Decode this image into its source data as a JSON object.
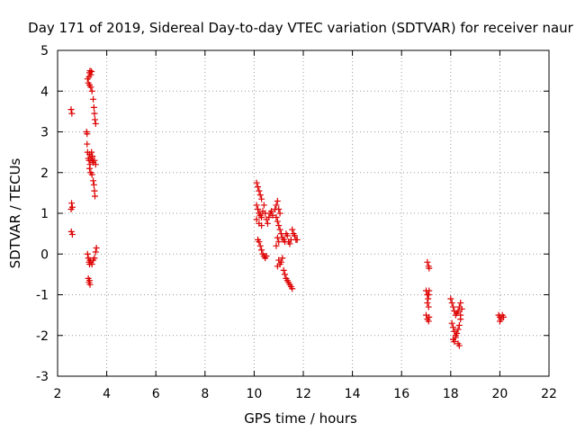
{
  "chart_data": {
    "type": "scatter",
    "title": "Day 171 of 2019, Sidereal Day-to-day VTEC variation (SDTVAR) for receiver naur",
    "xlabel": "GPS time / hours",
    "ylabel": "SDTVAR / TECUs",
    "xlim": [
      2,
      22
    ],
    "ylim": [
      -3,
      5
    ],
    "xticks": [
      "2",
      "4",
      "6",
      "8",
      "10",
      "12",
      "14",
      "16",
      "18",
      "20",
      "22"
    ],
    "yticks": [
      "-3",
      "-2",
      "-1",
      "0",
      "1",
      "2",
      "3",
      "4",
      "5"
    ],
    "grid": true,
    "marker": "plus",
    "colors": {
      "series": "#dd0000",
      "grid": "#999999",
      "axis": "#000000"
    },
    "series": [
      {
        "name": "SDTVAR",
        "points": [
          [
            2.55,
            3.55
          ],
          [
            2.58,
            3.45
          ],
          [
            2.57,
            1.25
          ],
          [
            2.55,
            1.1
          ],
          [
            2.6,
            1.15
          ],
          [
            2.56,
            0.55
          ],
          [
            2.6,
            0.48
          ],
          [
            3.18,
            3.0
          ],
          [
            3.2,
            2.95
          ],
          [
            3.22,
            4.3
          ],
          [
            3.25,
            4.2
          ],
          [
            3.28,
            4.35
          ],
          [
            3.3,
            4.45
          ],
          [
            3.32,
            4.5
          ],
          [
            3.35,
            4.4
          ],
          [
            3.38,
            4.48
          ],
          [
            3.3,
            4.15
          ],
          [
            3.35,
            4.1
          ],
          [
            3.4,
            4.0
          ],
          [
            3.45,
            3.8
          ],
          [
            3.48,
            3.6
          ],
          [
            3.5,
            3.45
          ],
          [
            3.52,
            3.3
          ],
          [
            3.55,
            3.2
          ],
          [
            3.2,
            2.7
          ],
          [
            3.22,
            2.5
          ],
          [
            3.25,
            2.35
          ],
          [
            3.28,
            2.3
          ],
          [
            3.3,
            2.45
          ],
          [
            3.32,
            2.2
          ],
          [
            3.35,
            2.35
          ],
          [
            3.38,
            2.5
          ],
          [
            3.4,
            2.3
          ],
          [
            3.42,
            2.4
          ],
          [
            3.45,
            2.25
          ],
          [
            3.5,
            2.3
          ],
          [
            3.55,
            2.2
          ],
          [
            3.3,
            2.1
          ],
          [
            3.35,
            2.0
          ],
          [
            3.4,
            1.95
          ],
          [
            3.45,
            1.8
          ],
          [
            3.48,
            1.7
          ],
          [
            3.5,
            1.55
          ],
          [
            3.52,
            1.42
          ],
          [
            3.22,
            0.0
          ],
          [
            3.25,
            -0.1
          ],
          [
            3.28,
            -0.2
          ],
          [
            3.3,
            -0.25
          ],
          [
            3.32,
            -0.15
          ],
          [
            3.35,
            -0.2
          ],
          [
            3.4,
            -0.25
          ],
          [
            3.45,
            -0.15
          ],
          [
            3.5,
            -0.1
          ],
          [
            3.55,
            0.05
          ],
          [
            3.58,
            0.15
          ],
          [
            3.25,
            -0.6
          ],
          [
            3.28,
            -0.7
          ],
          [
            3.3,
            -0.65
          ],
          [
            3.32,
            -0.75
          ],
          [
            10.1,
            1.75
          ],
          [
            10.15,
            1.65
          ],
          [
            10.2,
            1.55
          ],
          [
            10.25,
            1.45
          ],
          [
            10.3,
            1.35
          ],
          [
            10.1,
            1.2
          ],
          [
            10.15,
            1.1
          ],
          [
            10.2,
            1.0
          ],
          [
            10.25,
            0.95
          ],
          [
            10.3,
            0.9
          ],
          [
            10.35,
            1.05
          ],
          [
            10.4,
            1.2
          ],
          [
            10.45,
            1.0
          ],
          [
            10.5,
            0.85
          ],
          [
            10.55,
            0.75
          ],
          [
            10.6,
            0.9
          ],
          [
            10.65,
            1.0
          ],
          [
            10.7,
            1.05
          ],
          [
            10.75,
            0.95
          ],
          [
            10.1,
            0.85
          ],
          [
            10.2,
            0.75
          ],
          [
            10.3,
            0.7
          ],
          [
            10.15,
            0.35
          ],
          [
            10.2,
            0.3
          ],
          [
            10.25,
            0.2
          ],
          [
            10.3,
            0.1
          ],
          [
            10.35,
            0.0
          ],
          [
            10.4,
            -0.05
          ],
          [
            10.45,
            -0.1
          ],
          [
            10.5,
            -0.05
          ],
          [
            10.85,
            1.1
          ],
          [
            10.9,
            1.2
          ],
          [
            10.95,
            1.3
          ],
          [
            11.0,
            1.1
          ],
          [
            11.05,
            1.0
          ],
          [
            10.9,
            0.9
          ],
          [
            10.95,
            0.8
          ],
          [
            11.0,
            0.7
          ],
          [
            11.05,
            0.6
          ],
          [
            11.1,
            0.5
          ],
          [
            10.95,
            0.4
          ],
          [
            11.0,
            0.3
          ],
          [
            10.9,
            0.2
          ],
          [
            11.15,
            0.4
          ],
          [
            11.2,
            0.35
          ],
          [
            11.25,
            0.3
          ],
          [
            11.3,
            0.5
          ],
          [
            11.35,
            0.45
          ],
          [
            11.4,
            0.3
          ],
          [
            11.45,
            0.25
          ],
          [
            11.5,
            0.35
          ],
          [
            11.55,
            0.6
          ],
          [
            11.6,
            0.5
          ],
          [
            11.65,
            0.45
          ],
          [
            11.7,
            0.35
          ],
          [
            11.75,
            0.35
          ],
          [
            11.0,
            -0.15
          ],
          [
            11.05,
            -0.25
          ],
          [
            11.1,
            -0.2
          ],
          [
            11.15,
            -0.1
          ],
          [
            10.95,
            -0.3
          ],
          [
            11.2,
            -0.4
          ],
          [
            11.25,
            -0.5
          ],
          [
            11.3,
            -0.6
          ],
          [
            11.35,
            -0.65
          ],
          [
            11.4,
            -0.7
          ],
          [
            11.45,
            -0.75
          ],
          [
            11.5,
            -0.8
          ],
          [
            11.55,
            -0.85
          ],
          [
            17.05,
            -0.2
          ],
          [
            17.1,
            -0.3
          ],
          [
            17.12,
            -0.35
          ],
          [
            17.0,
            -0.9
          ],
          [
            17.05,
            -1.0
          ],
          [
            17.08,
            -1.1
          ],
          [
            17.1,
            -1.0
          ],
          [
            17.12,
            -0.9
          ],
          [
            17.05,
            -1.2
          ],
          [
            17.1,
            -1.3
          ],
          [
            17.0,
            -1.5
          ],
          [
            17.05,
            -1.6
          ],
          [
            17.1,
            -1.65
          ],
          [
            17.12,
            -1.55
          ],
          [
            18.0,
            -1.1
          ],
          [
            18.05,
            -1.2
          ],
          [
            18.1,
            -1.3
          ],
          [
            18.15,
            -1.4
          ],
          [
            18.2,
            -1.5
          ],
          [
            18.25,
            -1.45
          ],
          [
            18.3,
            -1.4
          ],
          [
            18.35,
            -1.3
          ],
          [
            18.4,
            -1.2
          ],
          [
            18.05,
            -1.7
          ],
          [
            18.1,
            -1.8
          ],
          [
            18.15,
            -1.9
          ],
          [
            18.2,
            -2.0
          ],
          [
            18.25,
            -1.95
          ],
          [
            18.3,
            -1.85
          ],
          [
            18.35,
            -1.75
          ],
          [
            18.4,
            -1.6
          ],
          [
            18.1,
            -2.1
          ],
          [
            18.15,
            -2.15
          ],
          [
            18.2,
            -2.05
          ],
          [
            18.3,
            -2.2
          ],
          [
            18.35,
            -2.25
          ],
          [
            18.4,
            -1.5
          ],
          [
            18.45,
            -1.35
          ],
          [
            19.95,
            -1.5
          ],
          [
            20.0,
            -1.55
          ],
          [
            20.05,
            -1.6
          ],
          [
            20.1,
            -1.5
          ],
          [
            20.15,
            -1.55
          ],
          [
            20.0,
            -1.65
          ]
        ]
      }
    ]
  }
}
